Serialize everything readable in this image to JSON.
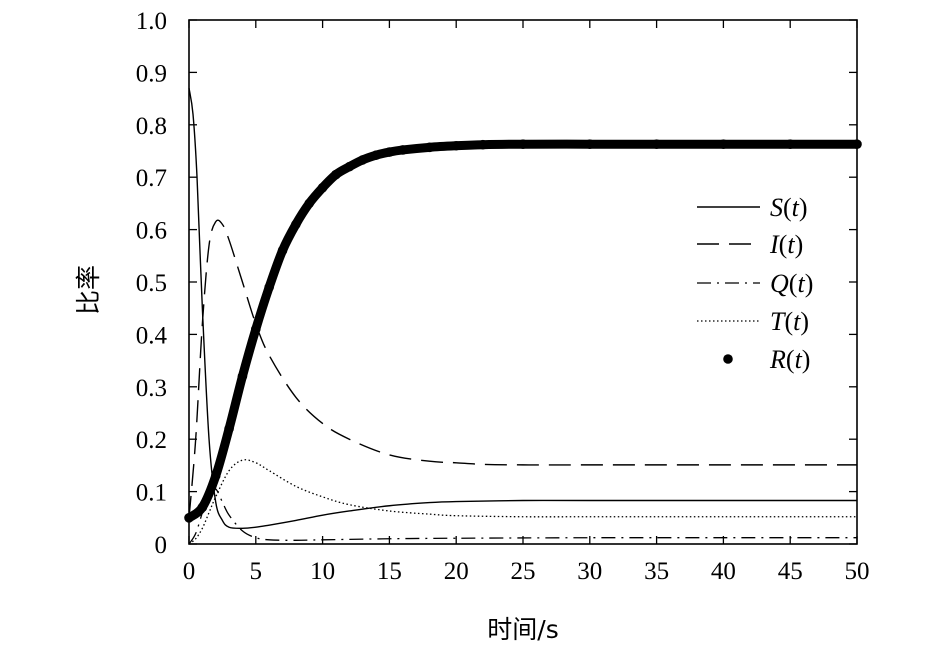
{
  "chart_data": {
    "type": "line",
    "title": "",
    "xlabel": "时间/s",
    "ylabel": "比率",
    "xlim": [
      0,
      50
    ],
    "ylim": [
      0,
      1.0
    ],
    "xticks": [
      "0",
      "5",
      "10",
      "15",
      "20",
      "25",
      "30",
      "35",
      "40",
      "45",
      "50"
    ],
    "yticks": [
      "0",
      "0.1",
      "0.2",
      "0.3",
      "0.4",
      "0.5",
      "0.6",
      "0.7",
      "0.8",
      "0.9",
      "1.0"
    ],
    "grid": false,
    "legend_position": "right",
    "series": [
      {
        "name": "S(t)",
        "style": "solid",
        "x": [
          0,
          0.3,
          0.6,
          1,
          1.5,
          2,
          2.5,
          3,
          4,
          5,
          6,
          8,
          10,
          12,
          15,
          18,
          20,
          25,
          30,
          40,
          50
        ],
        "y": [
          0.87,
          0.82,
          0.7,
          0.45,
          0.2,
          0.08,
          0.045,
          0.032,
          0.03,
          0.032,
          0.036,
          0.045,
          0.055,
          0.063,
          0.073,
          0.079,
          0.081,
          0.083,
          0.083,
          0.083,
          0.083
        ]
      },
      {
        "name": "I(t)",
        "style": "long-dash",
        "x": [
          0,
          0.5,
          1,
          1.5,
          2,
          2.5,
          3,
          4,
          5,
          6,
          8,
          10,
          12,
          15,
          18,
          20,
          22,
          25,
          30,
          40,
          50
        ],
        "y": [
          0.05,
          0.2,
          0.42,
          0.57,
          0.615,
          0.61,
          0.58,
          0.5,
          0.42,
          0.36,
          0.28,
          0.23,
          0.2,
          0.17,
          0.158,
          0.155,
          0.152,
          0.151,
          0.151,
          0.151,
          0.151
        ]
      },
      {
        "name": "Q(t)",
        "style": "dash-dot",
        "x": [
          0,
          0.5,
          1,
          1.5,
          2,
          2.5,
          3,
          4,
          5,
          6,
          8,
          10,
          15,
          20,
          30,
          40,
          50
        ],
        "y": [
          0.0,
          0.02,
          0.06,
          0.1,
          0.105,
          0.08,
          0.055,
          0.025,
          0.012,
          0.008,
          0.007,
          0.008,
          0.01,
          0.011,
          0.012,
          0.012,
          0.012
        ]
      },
      {
        "name": "T(t)",
        "style": "dotted",
        "x": [
          0,
          0.5,
          1,
          1.5,
          2,
          3,
          4,
          5,
          6,
          8,
          10,
          12,
          15,
          18,
          20,
          25,
          30,
          40,
          50
        ],
        "y": [
          0.0,
          0.01,
          0.03,
          0.06,
          0.09,
          0.14,
          0.16,
          0.155,
          0.14,
          0.11,
          0.09,
          0.075,
          0.063,
          0.057,
          0.054,
          0.052,
          0.052,
          0.052,
          0.052
        ]
      },
      {
        "name": "R(t)",
        "style": "markers",
        "x": [
          0,
          1,
          2,
          3,
          4,
          5,
          6,
          7,
          8,
          9,
          10,
          11,
          12,
          13,
          14,
          15,
          16,
          18,
          20,
          22,
          25,
          30,
          35,
          40,
          45,
          50
        ],
        "y": [
          0.05,
          0.07,
          0.13,
          0.22,
          0.32,
          0.41,
          0.49,
          0.56,
          0.61,
          0.65,
          0.68,
          0.705,
          0.72,
          0.733,
          0.742,
          0.748,
          0.752,
          0.757,
          0.76,
          0.762,
          0.763,
          0.763,
          0.763,
          0.763,
          0.763,
          0.763
        ]
      }
    ]
  },
  "legend": {
    "items": [
      {
        "letter": "S",
        "suffix_open": "(",
        "var": "t",
        "suffix_close": ")"
      },
      {
        "letter": "I",
        "suffix_open": "(",
        "var": "t",
        "suffix_close": ")"
      },
      {
        "letter": "Q",
        "suffix_open": "(",
        "var": "t",
        "suffix_close": ")"
      },
      {
        "letter": "T",
        "suffix_open": "(",
        "var": "t",
        "suffix_close": ")"
      },
      {
        "letter": "R",
        "suffix_open": "(",
        "var": "t",
        "suffix_close": ")"
      }
    ]
  }
}
